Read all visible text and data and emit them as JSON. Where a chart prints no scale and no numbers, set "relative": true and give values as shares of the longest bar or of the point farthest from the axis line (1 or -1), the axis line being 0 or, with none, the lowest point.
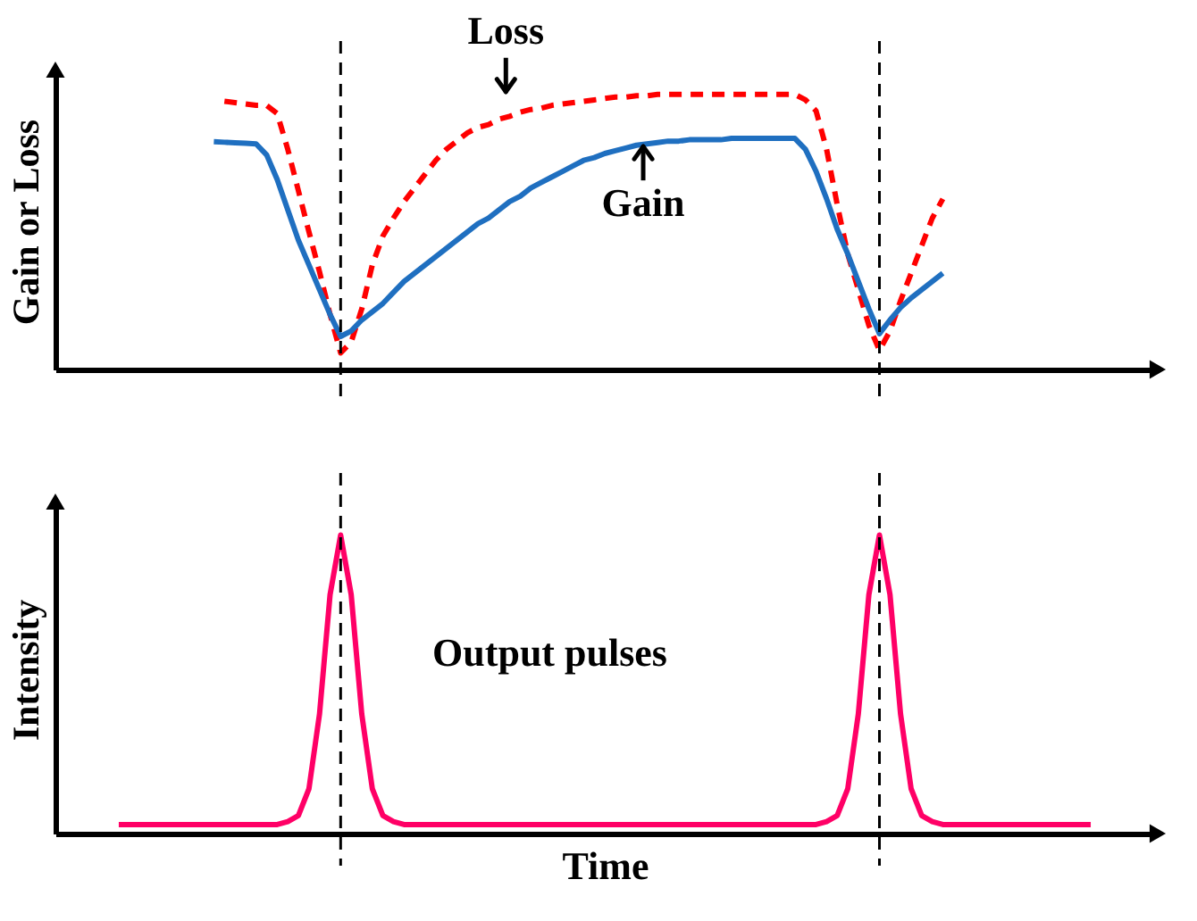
{
  "chart_data": [
    {
      "type": "line",
      "relative": true,
      "ylabel": "Gain or Loss",
      "tick_labels": false,
      "categories": [
        null,
        null,
        null,
        null,
        null,
        null,
        null,
        null,
        null,
        null,
        null,
        null,
        null,
        null,
        null,
        null,
        null,
        null,
        null,
        null,
        null,
        null,
        null,
        null,
        null,
        null,
        null,
        null,
        null,
        null,
        null,
        null,
        null,
        null,
        null,
        null,
        null,
        null,
        null,
        null,
        null,
        null,
        null,
        null,
        null,
        null,
        null,
        null,
        null,
        null,
        null,
        null,
        null,
        null,
        null,
        null,
        null,
        null,
        null,
        null,
        null,
        null,
        null,
        null,
        null,
        null,
        null,
        null,
        null,
        null,
        null,
        null,
        null,
        null,
        null,
        null,
        null,
        null,
        null,
        null,
        null,
        null,
        null,
        null,
        null,
        null,
        null,
        null,
        null,
        null,
        null,
        null,
        null,
        null,
        null,
        null,
        null,
        null,
        null,
        null,
        null,
        null,
        null,
        null,
        null
      ],
      "series": [
        {
          "color": "#ff0000",
          "line_style": "dashed",
          "values": [
            null,
            null,
            null,
            null,
            null,
            null,
            null,
            null,
            null,
            null,
            null,
            null,
            null,
            null,
            null,
            null,
            0.975,
            0.97,
            0.965,
            0.96,
            0.96,
            0.93,
            0.8,
            0.65,
            0.5,
            0.355,
            0.2,
            0.06,
            0.1,
            0.22,
            0.38,
            0.485,
            0.55,
            0.61,
            0.66,
            0.71,
            0.76,
            0.8,
            0.83,
            0.86,
            0.88,
            0.89,
            0.91,
            0.92,
            0.935,
            0.945,
            0.95,
            0.96,
            0.965,
            0.97,
            0.975,
            0.98,
            0.985,
            0.99,
            0.99,
            0.995,
            0.995,
            1,
            1,
            1,
            1,
            1,
            1,
            1,
            1,
            1,
            1,
            1,
            1,
            1,
            1,
            0.98,
            0.94,
            0.8,
            0.6,
            0.42,
            0.29,
            0.16,
            0.07,
            0.14,
            0.25,
            0.35,
            0.45,
            0.55,
            0.62,
            null,
            null,
            null,
            null,
            null,
            null,
            null,
            null,
            null,
            null,
            null,
            null,
            null,
            null,
            null,
            null,
            null,
            null,
            null,
            null
          ]
        },
        {
          "color": "#1f6fc0",
          "line_style": "solid",
          "values": [
            null,
            null,
            null,
            null,
            null,
            null,
            null,
            null,
            null,
            null,
            null,
            null,
            null,
            null,
            null,
            0.828,
            0.826,
            0.824,
            0.822,
            0.82,
            0.78,
            0.69,
            0.58,
            0.47,
            0.38,
            0.29,
            0.2,
            0.12,
            0.14,
            0.18,
            0.21,
            0.24,
            0.28,
            0.32,
            0.35,
            0.38,
            0.41,
            0.44,
            0.47,
            0.5,
            0.53,
            0.55,
            0.58,
            0.61,
            0.63,
            0.66,
            0.68,
            0.7,
            0.72,
            0.74,
            0.76,
            0.77,
            0.785,
            0.795,
            0.805,
            0.815,
            0.82,
            0.825,
            0.83,
            0.83,
            0.835,
            0.835,
            0.835,
            0.835,
            0.84,
            0.84,
            0.84,
            0.84,
            0.84,
            0.84,
            0.84,
            0.8,
            0.72,
            0.62,
            0.51,
            0.42,
            0.32,
            0.22,
            0.13,
            0.18,
            0.225,
            0.26,
            0.29,
            0.32,
            0.35,
            null,
            null,
            null,
            null,
            null,
            null,
            null,
            null,
            null,
            null,
            null,
            null,
            null,
            null,
            null,
            null,
            null,
            null,
            null,
            null
          ]
        }
      ],
      "annotations": [
        "Loss",
        "Gain"
      ]
    },
    {
      "type": "line",
      "relative": true,
      "ylabel": "Intensity",
      "xlabel": "Time",
      "tick_labels": false,
      "categories": [
        null,
        null,
        null,
        null,
        null,
        null,
        null,
        null,
        null,
        null,
        null,
        null,
        null,
        null,
        null,
        null,
        null,
        null,
        null,
        null,
        null,
        null,
        null,
        null,
        null,
        null,
        null,
        null,
        null,
        null,
        null,
        null,
        null,
        null,
        null,
        null,
        null,
        null,
        null,
        null,
        null,
        null,
        null,
        null,
        null,
        null,
        null,
        null,
        null,
        null,
        null,
        null,
        null,
        null,
        null,
        null,
        null,
        null,
        null,
        null,
        null,
        null,
        null,
        null,
        null,
        null,
        null,
        null,
        null,
        null,
        null,
        null,
        null,
        null,
        null,
        null,
        null,
        null,
        null,
        null,
        null,
        null,
        null,
        null,
        null,
        null,
        null,
        null,
        null,
        null,
        null,
        null,
        null,
        null,
        null,
        null,
        null,
        null,
        null,
        null,
        null,
        null,
        null,
        null,
        null
      ],
      "series": [
        {
          "color": "#ff0066",
          "line_style": "solid",
          "values": [
            null,
            null,
            null,
            null,
            null,
            null,
            0.03,
            0.03,
            0.03,
            0.03,
            0.03,
            0.03,
            0.03,
            0.03,
            0.03,
            0.03,
            0.03,
            0.03,
            0.03,
            0.03,
            0.03,
            0.03,
            0.04,
            0.06,
            0.15,
            0.4,
            0.8,
            1,
            0.8,
            0.4,
            0.15,
            0.06,
            0.04,
            0.03,
            0.03,
            0.03,
            0.03,
            0.03,
            0.03,
            0.03,
            0.03,
            0.03,
            0.03,
            0.03,
            0.03,
            0.03,
            0.03,
            0.03,
            0.03,
            0.03,
            0.03,
            0.03,
            0.03,
            0.03,
            0.03,
            0.03,
            0.03,
            0.03,
            0.03,
            0.03,
            0.03,
            0.03,
            0.03,
            0.03,
            0.03,
            0.03,
            0.03,
            0.03,
            0.03,
            0.03,
            0.03,
            0.03,
            0.03,
            0.04,
            0.06,
            0.15,
            0.4,
            0.8,
            1,
            0.8,
            0.4,
            0.15,
            0.06,
            0.04,
            0.03,
            0.03,
            0.03,
            0.03,
            0.03,
            0.03,
            0.03,
            0.03,
            0.03,
            0.03,
            0.03,
            0.03,
            0.03,
            0.03,
            0.03,
            null,
            null,
            null,
            null,
            null,
            null
          ]
        }
      ],
      "annotations": [
        "Output pulses"
      ]
    }
  ]
}
